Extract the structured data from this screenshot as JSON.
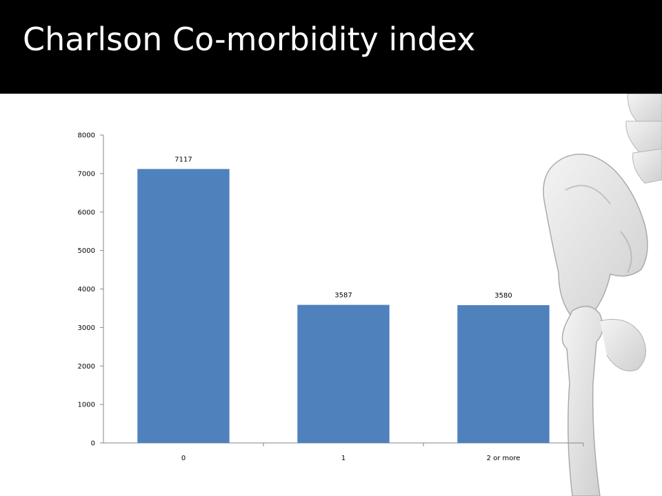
{
  "slide": {
    "title": "Charlson Co-morbidity index"
  },
  "colors": {
    "title_bar": "#000000",
    "title_text": "#ffffff",
    "bar": "#4f81bd",
    "axis": "#868686"
  },
  "chart_data": {
    "type": "bar",
    "categories": [
      "0",
      "1",
      "2 or more"
    ],
    "values": [
      7117,
      3587,
      3580
    ],
    "data_labels": [
      "7117",
      "3587",
      "3580"
    ],
    "ylim": [
      0,
      8000
    ],
    "yticks": [
      0,
      1000,
      2000,
      3000,
      4000,
      5000,
      6000,
      7000,
      8000
    ],
    "ytick_labels": [
      "0",
      "1000",
      "2000",
      "3000",
      "4000",
      "5000",
      "6000",
      "7000",
      "8000"
    ],
    "grid": false,
    "legend": "none"
  }
}
